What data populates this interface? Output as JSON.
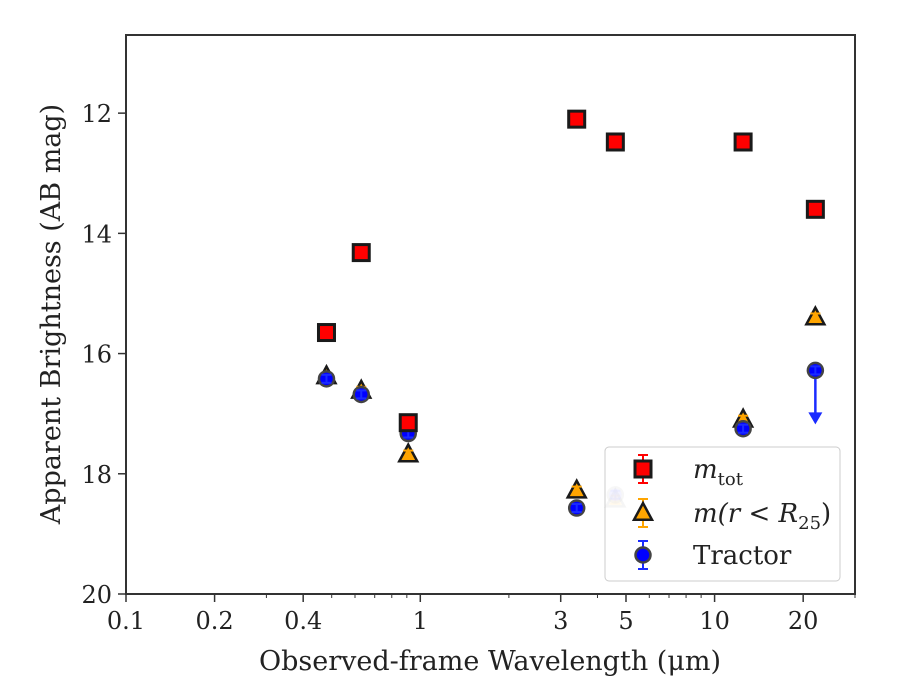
{
  "chart_data": {
    "type": "scatter",
    "title": "",
    "xlabel": "Observed-frame Wavelength (μm)",
    "ylabel": "Apparent Brightness (AB mag)",
    "xscale": "log",
    "xlim": [
      0.1,
      30
    ],
    "ylim": [
      20,
      10.7
    ],
    "y_inverted": true,
    "grid": false,
    "legend_position": "lower-right",
    "xticks": [
      {
        "value": 0.1,
        "label": "0.1"
      },
      {
        "value": 0.2,
        "label": "0.2"
      },
      {
        "value": 0.4,
        "label": "0.4"
      },
      {
        "value": 1,
        "label": "1"
      },
      {
        "value": 3,
        "label": "3"
      },
      {
        "value": 5,
        "label": "5"
      },
      {
        "value": 10,
        "label": "10"
      },
      {
        "value": 20,
        "label": "20"
      }
    ],
    "yticks": [
      {
        "value": 12,
        "label": "12"
      },
      {
        "value": 14,
        "label": "14"
      },
      {
        "value": 16,
        "label": "16"
      },
      {
        "value": 18,
        "label": "18"
      },
      {
        "value": 20,
        "label": "20"
      }
    ],
    "series": [
      {
        "name": "m_tot",
        "legend_main": "m",
        "legend_sub": "tot",
        "legend_suffix": "",
        "marker": "square",
        "color": "#ff0000",
        "edge": "#1a1a1a",
        "errcolor": "#ff0000",
        "x": [
          0.48,
          0.63,
          0.91,
          3.4,
          4.6,
          12.5,
          22
        ],
        "y": [
          15.65,
          14.32,
          17.15,
          12.1,
          12.48,
          12.48,
          13.6
        ]
      },
      {
        "name": "m(r < R_25)",
        "legend_main": "m(r < R",
        "legend_sub": "25",
        "legend_suffix": ")",
        "marker": "triangle",
        "color": "#ffa500",
        "edge": "#1a1a1a",
        "errcolor": "#ffa500",
        "x": [
          0.48,
          0.63,
          0.91,
          3.4,
          4.6,
          12.5,
          22
        ],
        "y": [
          16.38,
          16.62,
          17.68,
          18.28,
          18.43,
          17.1,
          15.4
        ],
        "faded": [
          false,
          false,
          false,
          false,
          true,
          false,
          false
        ]
      },
      {
        "name": "Tractor",
        "legend_main": "Tractor",
        "legend_sub": "",
        "legend_suffix": "",
        "marker": "circle",
        "color": "#0000ff",
        "edge": "#444444",
        "errcolor": "#1a2bff",
        "x": [
          0.48,
          0.63,
          0.91,
          3.4,
          4.6,
          12.5,
          22
        ],
        "y": [
          16.42,
          16.68,
          17.33,
          18.57,
          18.35,
          17.25,
          16.28
        ],
        "faded": [
          false,
          false,
          false,
          false,
          true,
          false,
          false
        ],
        "upper_limit": [
          false,
          false,
          false,
          false,
          false,
          false,
          true
        ]
      }
    ]
  }
}
